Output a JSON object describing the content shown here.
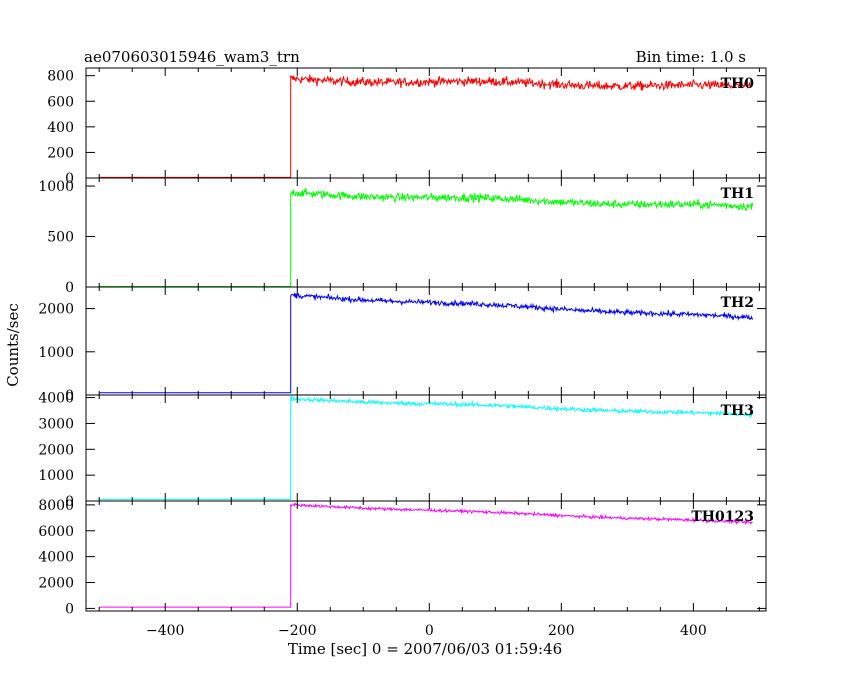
{
  "chart_data": {
    "type": "line",
    "title": "ae070603015946_wam3_trn",
    "bin_time": "Bin time: 1.0 s",
    "xlabel": "Time [sec] 0 = 2007/06/03 01:59:46",
    "ylabel": "Counts/sec",
    "xlim": [
      -520,
      510
    ],
    "x_ticks": [
      -400,
      -200,
      0,
      200,
      400
    ],
    "x_tick_labels": [
      "−400",
      "−200",
      "0",
      "200",
      "400"
    ],
    "x_start": -500,
    "trigger_time": -210,
    "x_end": 490,
    "panels": [
      {
        "name": "TH0",
        "color": "#ff0000",
        "ylim": [
          0,
          860
        ],
        "y_ticks": [
          0,
          200,
          400,
          600,
          800
        ],
        "y_tick_labels": [
          "0",
          "200",
          "400",
          "600",
          "800"
        ],
        "pre_level": 5,
        "post_start": 770,
        "post_end": 710,
        "noise": 35
      },
      {
        "name": "TH1",
        "color": "#00ff00",
        "ylim": [
          0,
          1080
        ],
        "y_ticks": [
          0,
          500,
          1000
        ],
        "y_tick_labels": [
          "0",
          "500",
          "1000"
        ],
        "pre_level": 5,
        "post_start": 930,
        "post_end": 790,
        "noise": 40
      },
      {
        "name": "TH2",
        "color": "#0000ff",
        "ylim": [
          0,
          2500
        ],
        "y_ticks": [
          0,
          1000,
          2000
        ],
        "y_tick_labels": [
          "0",
          "1000",
          "2000"
        ],
        "pre_level": 50,
        "post_start": 2300,
        "post_end": 1780,
        "noise": 60
      },
      {
        "name": "TH3",
        "color": "#00ffff",
        "ylim": [
          0,
          4100
        ],
        "y_ticks": [
          0,
          1000,
          2000,
          3000,
          4000
        ],
        "y_tick_labels": [
          "0",
          "1000",
          "2000",
          "3000",
          "4000"
        ],
        "pre_level": 60,
        "post_start": 3950,
        "post_end": 3320,
        "noise": 80
      },
      {
        "name": "TH0123",
        "color": "#ff00ff",
        "ylim": [
          -200,
          8300
        ],
        "y_ticks": [
          0,
          2000,
          4000,
          6000,
          8000
        ],
        "y_tick_labels": [
          "0",
          "2000",
          "4000",
          "6000",
          "8000"
        ],
        "pre_level": 100,
        "post_start": 8000,
        "post_end": 6620,
        "noise": 110
      }
    ]
  }
}
